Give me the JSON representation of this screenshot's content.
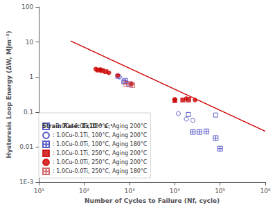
{
  "chart_data": {
    "type": "scatter",
    "log": true,
    "grid": false,
    "legend": "lower left",
    "xlabel": "Number of Cycles to Failure (Nf, cycle)",
    "ylabel": "Hysteresis Loop Energy (ΔW, MJm⁻³)",
    "legend_title": "Strain Rate: 1x10⁻³ s⁻¹",
    "xlim": [
      10,
      1000000
    ],
    "ylim": [
      0.001,
      100
    ],
    "xticks": [
      {
        "value": 10,
        "label": "10¹"
      },
      {
        "value": 100,
        "label": "10²"
      },
      {
        "value": 1000,
        "label": "10³"
      },
      {
        "value": 10000,
        "label": "10⁴"
      },
      {
        "value": 100000,
        "label": "10⁵"
      },
      {
        "value": 1000000,
        "label": "10⁶"
      }
    ],
    "yticks": [
      {
        "value": 0.001,
        "label": "1E-3"
      },
      0.01,
      0.1,
      1,
      10,
      100
    ],
    "series": [
      {
        "type": "line",
        "color": "#cc0000",
        "line_style": "solid",
        "x": [
          50,
          1000000
        ],
        "values": [
          10.73045,
          0.0281838
        ]
      },
      {
        "type": "scatter",
        "name": ": 1.0Cu-0.0Ti, 100°C, Aging 200°C",
        "color": "#3333bb",
        "marker": "hollow-square",
        "x": [
          550,
          750,
          20000,
          80000
        ],
        "values": [
          1.05,
          0.73,
          0.085,
          0.082
        ]
      },
      {
        "type": "scatter",
        "name": ": 1.0Cu-0.1Ti, 100°C, Aging 200°C",
        "color": "#3333bb",
        "marker": "hollow-circle",
        "x": [
          600,
          12000,
          18000,
          25000
        ],
        "values": [
          1.0,
          0.09,
          0.063,
          0.058
        ]
      },
      {
        "type": "scatter",
        "name": ": 1.0Cu-0.0Ti, 100°C, Aging 180°C",
        "color": "#3333bb",
        "marker": "crossed-square",
        "x": [
          800,
          1000,
          25000,
          35000,
          50000,
          80000,
          100000
        ],
        "values": [
          0.78,
          0.62,
          0.027,
          0.027,
          0.028,
          0.018,
          0.009
        ]
      },
      {
        "type": "scatter",
        "name": ": 1.0Cu-0.1Ti, 250°C, Aging 200°C",
        "color": "#cc0000",
        "marker": "square",
        "x": [
          200,
          250,
          300,
          10000,
          15000,
          20000
        ],
        "values": [
          1.58,
          1.52,
          1.42,
          0.21,
          0.22,
          0.23
        ]
      },
      {
        "type": "scatter",
        "name": ": 1.0Cu-0.0Ti, 250°C, Aging 200°C",
        "color": "#cc0000",
        "marker": "circle",
        "x": [
          180,
          230,
          350,
          550,
          1100,
          10000,
          18000,
          28000
        ],
        "values": [
          1.68,
          1.62,
          1.32,
          1.1,
          0.64,
          0.23,
          0.24,
          0.22
        ]
      },
      {
        "type": "scatter",
        "name": ": 1.0Cu-0.0Ti, 250°C, Aging 180°C",
        "color": "#cc4444",
        "marker": "crossed-square",
        "x": [
          850,
          1150,
          20000
        ],
        "values": [
          0.64,
          0.59,
          0.22
        ]
      }
    ]
  }
}
